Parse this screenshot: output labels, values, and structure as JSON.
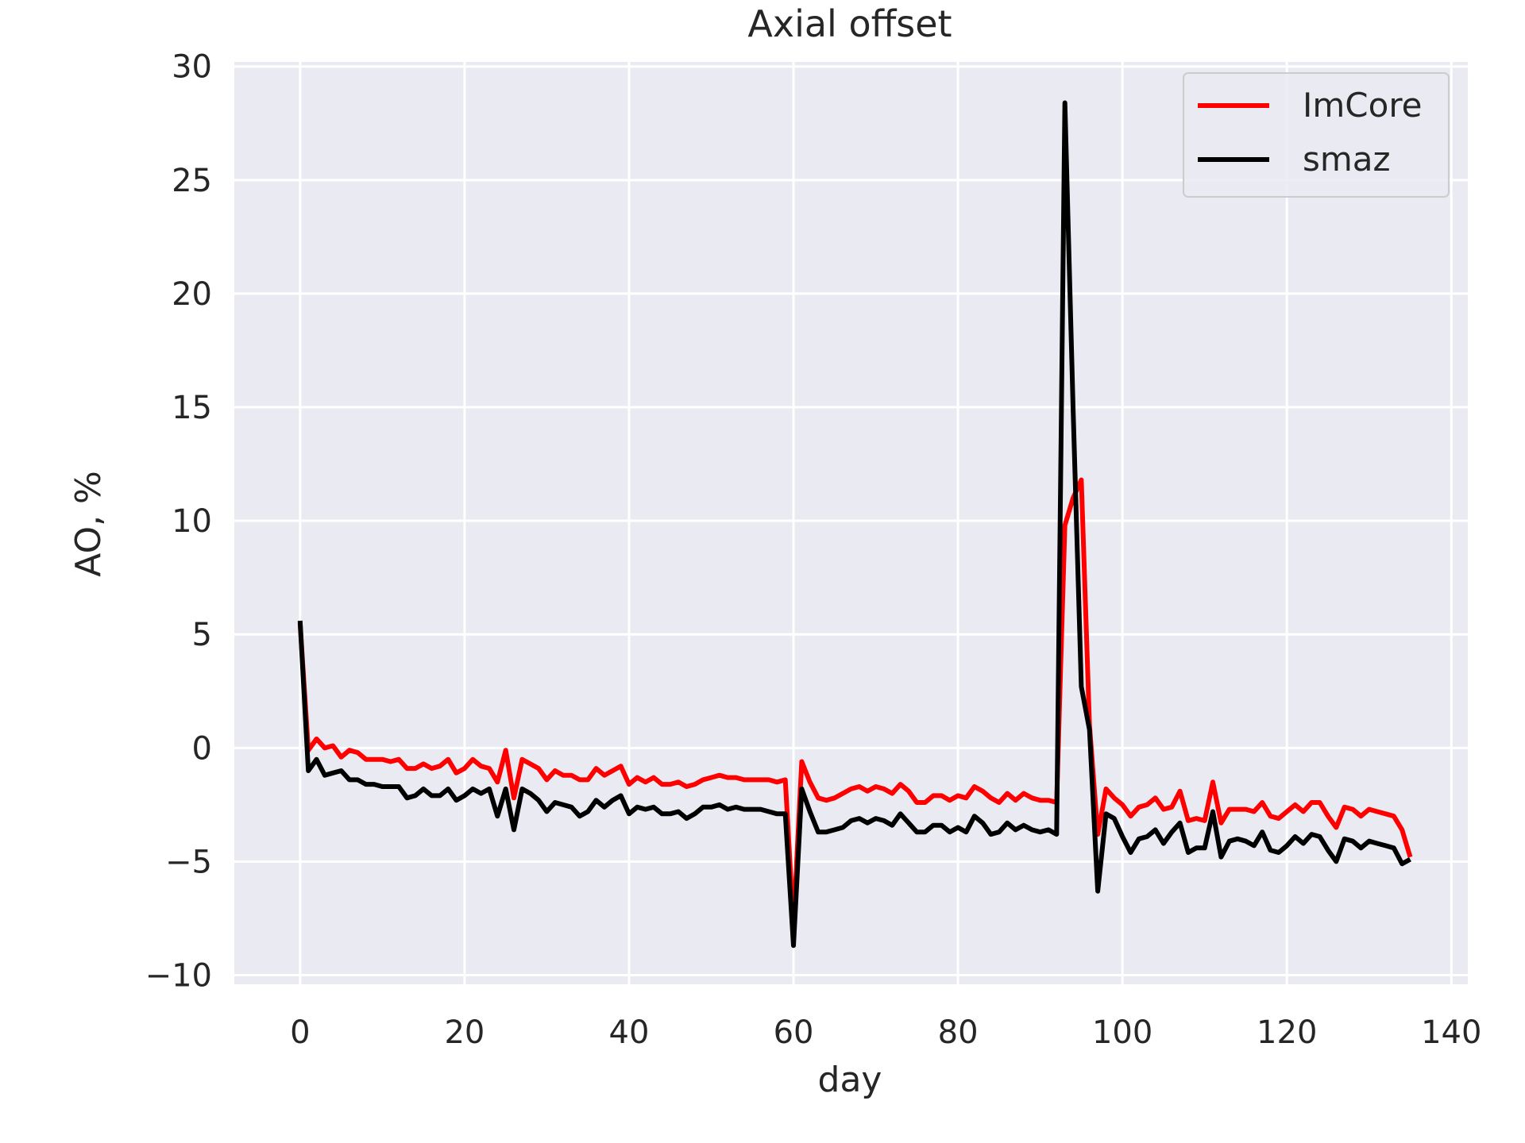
{
  "chart_data": {
    "type": "line",
    "title": "Axial offset",
    "xlabel": "day",
    "ylabel": "AO, %",
    "xlim": [
      -8,
      142
    ],
    "ylim": [
      -10.4,
      30.2
    ],
    "xticks": [
      0,
      20,
      40,
      60,
      80,
      100,
      120,
      140
    ],
    "xtick_labels": [
      "0",
      "20",
      "40",
      "60",
      "80",
      "100",
      "120",
      "140"
    ],
    "yticks": [
      -10,
      -5,
      0,
      5,
      10,
      15,
      20,
      25,
      30
    ],
    "ytick_labels": [
      "−10",
      "−5",
      "0",
      "5",
      "10",
      "15",
      "20",
      "25",
      "30"
    ],
    "grid": true,
    "legend_position": "top-right",
    "colors": {
      "background": "#eaeaf2",
      "grid": "#ffffff",
      "text": "#262626"
    },
    "series": [
      {
        "name": "ImCore",
        "color": "#ff0000",
        "x": [
          0,
          1,
          2,
          3,
          4,
          5,
          6,
          7,
          8,
          9,
          10,
          11,
          12,
          13,
          14,
          15,
          16,
          17,
          18,
          19,
          20,
          21,
          22,
          23,
          24,
          25,
          26,
          27,
          28,
          29,
          30,
          31,
          32,
          33,
          34,
          35,
          36,
          37,
          38,
          39,
          40,
          41,
          42,
          43,
          44,
          45,
          46,
          47,
          48,
          49,
          50,
          51,
          52,
          53,
          54,
          55,
          56,
          57,
          58,
          59,
          60,
          61,
          62,
          63,
          64,
          65,
          66,
          67,
          68,
          69,
          70,
          71,
          72,
          73,
          74,
          75,
          76,
          77,
          78,
          79,
          80,
          81,
          82,
          83,
          84,
          85,
          86,
          87,
          88,
          89,
          90,
          91,
          92,
          93,
          94,
          95,
          96,
          97,
          98,
          99,
          100,
          101,
          102,
          103,
          104,
          105,
          106,
          107,
          108,
          109,
          110,
          111,
          112,
          113,
          114,
          115,
          116,
          117,
          118,
          119,
          120,
          121,
          122,
          123,
          124,
          125,
          126,
          127,
          128,
          129,
          130,
          131,
          132,
          133,
          134,
          135
        ],
        "y": [
          5.5,
          -0.1,
          0.4,
          0.0,
          0.1,
          -0.4,
          -0.1,
          -0.2,
          -0.5,
          -0.5,
          -0.5,
          -0.6,
          -0.5,
          -0.9,
          -0.9,
          -0.7,
          -0.9,
          -0.8,
          -0.5,
          -1.1,
          -0.9,
          -0.5,
          -0.8,
          -0.9,
          -1.5,
          -0.1,
          -2.2,
          -0.5,
          -0.7,
          -0.9,
          -1.4,
          -1.0,
          -1.2,
          -1.2,
          -1.4,
          -1.4,
          -0.9,
          -1.2,
          -1.0,
          -0.8,
          -1.6,
          -1.3,
          -1.5,
          -1.3,
          -1.6,
          -1.6,
          -1.5,
          -1.7,
          -1.6,
          -1.4,
          -1.3,
          -1.2,
          -1.3,
          -1.3,
          -1.4,
          -1.4,
          -1.4,
          -1.4,
          -1.5,
          -1.4,
          -7.8,
          -0.6,
          -1.5,
          -2.2,
          -2.3,
          -2.2,
          -2.0,
          -1.8,
          -1.7,
          -1.9,
          -1.7,
          -1.8,
          -2.0,
          -1.6,
          -1.9,
          -2.4,
          -2.4,
          -2.1,
          -2.1,
          -2.3,
          -2.1,
          -2.2,
          -1.7,
          -1.9,
          -2.2,
          -2.4,
          -2.0,
          -2.3,
          -2.0,
          -2.2,
          -2.3,
          -2.3,
          -2.4,
          9.8,
          11.0,
          11.8,
          1.0,
          -3.8,
          -1.8,
          -2.2,
          -2.5,
          -3.0,
          -2.6,
          -2.5,
          -2.2,
          -2.7,
          -2.6,
          -1.9,
          -3.2,
          -3.1,
          -3.2,
          -1.5,
          -3.3,
          -2.7,
          -2.7,
          -2.7,
          -2.8,
          -2.4,
          -3.0,
          -3.1,
          -2.8,
          -2.5,
          -2.8,
          -2.4,
          -2.4,
          -3.0,
          -3.5,
          -2.6,
          -2.7,
          -3.0,
          -2.7,
          -2.8,
          -2.9,
          -3.0,
          -3.6,
          -4.8
        ]
      },
      {
        "name": "smaz",
        "color": "#000000",
        "x": [
          0,
          1,
          2,
          3,
          4,
          5,
          6,
          7,
          8,
          9,
          10,
          11,
          12,
          13,
          14,
          15,
          16,
          17,
          18,
          19,
          20,
          21,
          22,
          23,
          24,
          25,
          26,
          27,
          28,
          29,
          30,
          31,
          32,
          33,
          34,
          35,
          36,
          37,
          38,
          39,
          40,
          41,
          42,
          43,
          44,
          45,
          46,
          47,
          48,
          49,
          50,
          51,
          52,
          53,
          54,
          55,
          56,
          57,
          58,
          59,
          60,
          61,
          62,
          63,
          64,
          65,
          66,
          67,
          68,
          69,
          70,
          71,
          72,
          73,
          74,
          75,
          76,
          77,
          78,
          79,
          80,
          81,
          82,
          83,
          84,
          85,
          86,
          87,
          88,
          89,
          90,
          91,
          92,
          93,
          94,
          95,
          96,
          97,
          98,
          99,
          100,
          101,
          102,
          103,
          104,
          105,
          106,
          107,
          108,
          109,
          110,
          111,
          112,
          113,
          114,
          115,
          116,
          117,
          118,
          119,
          120,
          121,
          122,
          123,
          124,
          125,
          126,
          127,
          128,
          129,
          130,
          131,
          132,
          133,
          134,
          135
        ],
        "y": [
          5.6,
          -1.0,
          -0.5,
          -1.2,
          -1.1,
          -1.0,
          -1.4,
          -1.4,
          -1.6,
          -1.6,
          -1.7,
          -1.7,
          -1.7,
          -2.2,
          -2.1,
          -1.8,
          -2.1,
          -2.1,
          -1.8,
          -2.3,
          -2.1,
          -1.8,
          -2.0,
          -1.8,
          -3.0,
          -1.8,
          -3.6,
          -1.8,
          -2.0,
          -2.3,
          -2.8,
          -2.4,
          -2.5,
          -2.6,
          -3.0,
          -2.8,
          -2.3,
          -2.6,
          -2.3,
          -2.1,
          -2.9,
          -2.6,
          -2.7,
          -2.6,
          -2.9,
          -2.9,
          -2.8,
          -3.1,
          -2.9,
          -2.6,
          -2.6,
          -2.5,
          -2.7,
          -2.6,
          -2.7,
          -2.7,
          -2.7,
          -2.8,
          -2.9,
          -2.9,
          -8.7,
          -1.8,
          -2.8,
          -3.7,
          -3.7,
          -3.6,
          -3.5,
          -3.2,
          -3.1,
          -3.3,
          -3.1,
          -3.2,
          -3.4,
          -2.9,
          -3.3,
          -3.7,
          -3.7,
          -3.4,
          -3.4,
          -3.7,
          -3.5,
          -3.7,
          -3.0,
          -3.3,
          -3.8,
          -3.7,
          -3.3,
          -3.6,
          -3.4,
          -3.6,
          -3.7,
          -3.6,
          -3.8,
          28.4,
          15.0,
          2.7,
          0.8,
          -6.3,
          -2.9,
          -3.1,
          -3.9,
          -4.6,
          -4.0,
          -3.9,
          -3.6,
          -4.2,
          -3.7,
          -3.3,
          -4.6,
          -4.4,
          -4.4,
          -2.8,
          -4.8,
          -4.1,
          -4.0,
          -4.1,
          -4.3,
          -3.7,
          -4.5,
          -4.6,
          -4.3,
          -3.9,
          -4.2,
          -3.8,
          -3.9,
          -4.5,
          -5.0,
          -4.0,
          -4.1,
          -4.4,
          -4.1,
          -4.2,
          -4.3,
          -4.4,
          -5.1,
          -4.9
        ]
      }
    ]
  }
}
